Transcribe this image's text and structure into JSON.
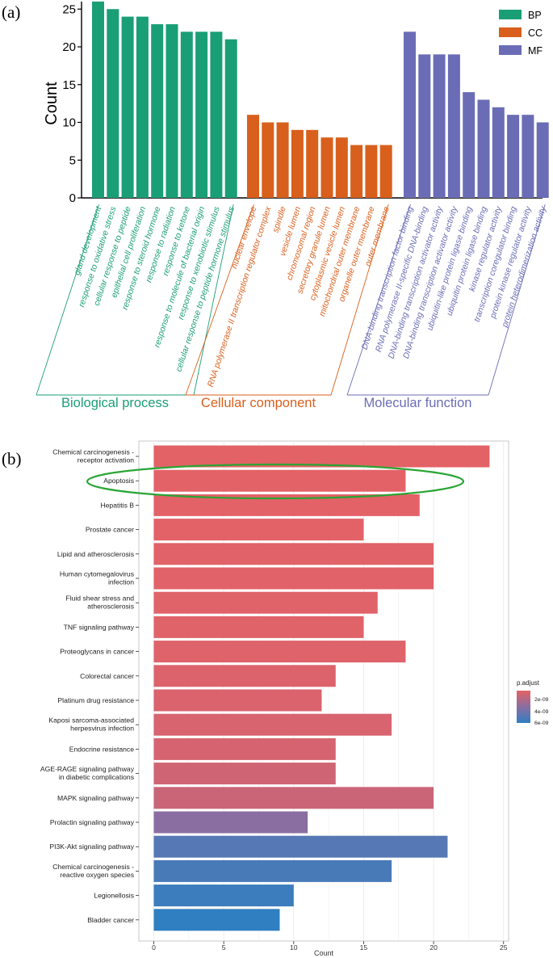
{
  "panels": {
    "a": {
      "tag": "(a)"
    },
    "b": {
      "tag": "(b)"
    }
  },
  "colors": {
    "BP": "#1a9e76",
    "CC": "#d95f1c",
    "MF": "#6a6db5",
    "highlight": "#2aa534",
    "grid": "#ebebeb",
    "panel_border": "#bdbdbd",
    "gradient_high": "#e46266",
    "gradient_mid": "#8a6ea2",
    "gradient_low": "#2f7fc1"
  },
  "chart_data": [
    {
      "type": "bar",
      "panel": "a",
      "title": "",
      "xlabel": "",
      "ylabel": "Count",
      "ylim": [
        0,
        26
      ],
      "yticks": [
        0,
        5,
        10,
        15,
        20,
        25
      ],
      "legend": {
        "placement": "top-right",
        "entries": [
          "BP",
          "CC",
          "MF"
        ]
      },
      "groups": [
        {
          "key": "BP",
          "label": "Biological process",
          "categories": [
            "gland development",
            "response to oxidative stress",
            "cellular response to peptide",
            "epithelial cell proliferation",
            "response to steroid hormone",
            "response to radiation",
            "response to ketone",
            "response to molecule of bacterial origin",
            "response to xenobiotic stimulus",
            "cellular response to peptide hormone stimulus"
          ],
          "values": [
            26,
            25,
            24,
            24,
            23,
            23,
            22,
            22,
            22,
            21
          ]
        },
        {
          "key": "CC",
          "label": "Cellular component",
          "categories": [
            "nuclear envelope",
            "RNA polymerase II transcription regulator complex",
            "spindle",
            "vesicle lumen",
            "chromosomal region",
            "secretory granule lumen",
            "cytoplasmic vesicle lumen",
            "mitochondrial outer membrane",
            "organelle outer membrane",
            "outer membrane"
          ],
          "values": [
            11,
            10,
            10,
            9,
            9,
            8,
            8,
            7,
            7,
            7
          ]
        },
        {
          "key": "MF",
          "label": "Molecular function",
          "categories": [
            "DNA-binding transcription factor binding",
            "RNA polymerase II-specific DNA-binding",
            "DNA-binding transcription activator activity",
            "DNA-binding transcription activator activity",
            "ubiquitin-like protein ligase binding",
            "ubiquitin protein ligase binding",
            "kinase regulator activity",
            "transcription coregulator binding",
            "protein kinase regulator activity",
            "protein heterodimerization activity"
          ],
          "values": [
            22,
            19,
            19,
            19,
            14,
            13,
            12,
            11,
            11,
            10
          ]
        }
      ]
    },
    {
      "type": "bar",
      "orientation": "horizontal",
      "panel": "b",
      "title": "",
      "xlabel": "Count",
      "ylabel": "",
      "xlim": [
        0,
        25
      ],
      "xticks": [
        0,
        5,
        10,
        15,
        20,
        25
      ],
      "color_legend": {
        "title": "p.adjust",
        "placement": "right",
        "ticks": [
          "2e-09",
          "4e-09",
          "6e-09"
        ]
      },
      "highlighted_category": "Apoptosis",
      "categories": [
        [
          "Chemical carcinogenesis -",
          "receptor activation"
        ],
        [
          "Apoptosis"
        ],
        [
          "Hepatitis B"
        ],
        [
          "Prostate cancer"
        ],
        [
          "Lipid and atherosclerosis"
        ],
        [
          "Human cytomegalovirus",
          "infection"
        ],
        [
          "Fluid shear stress and",
          "atherosclerosis"
        ],
        [
          "TNF signaling pathway"
        ],
        [
          "Proteoglycans in cancer"
        ],
        [
          "Colorectal cancer"
        ],
        [
          "Platinum drug resistance"
        ],
        [
          "Kaposi sarcoma-associated",
          "herpesvirus infection"
        ],
        [
          "Endocrine resistance"
        ],
        [
          "AGE-RAGE signaling pathway",
          "in diabetic complications"
        ],
        [
          "MAPK signaling pathway"
        ],
        [
          "Prolactin signaling pathway"
        ],
        [
          "PI3K-Akt signaling pathway"
        ],
        [
          "Chemical carcinogenesis -",
          "reactive oxygen species"
        ],
        [
          "Legionellosis"
        ],
        [
          "Bladder cancer"
        ]
      ],
      "values": [
        24,
        18,
        19,
        15,
        20,
        20,
        16,
        15,
        18,
        13,
        12,
        17,
        13,
        13,
        20,
        11,
        21,
        17,
        10,
        9
      ],
      "p_adjust": [
        2e-11,
        3e-11,
        5e-11,
        8e-11,
        1e-10,
        1.2e-10,
        1.5e-10,
        2e-10,
        2.5e-10,
        3e-10,
        4e-10,
        5e-10,
        6e-10,
        8e-10,
        1e-09,
        3.5e-09,
        5.5e-09,
        6e-09,
        6.5e-09,
        7e-09
      ]
    }
  ]
}
